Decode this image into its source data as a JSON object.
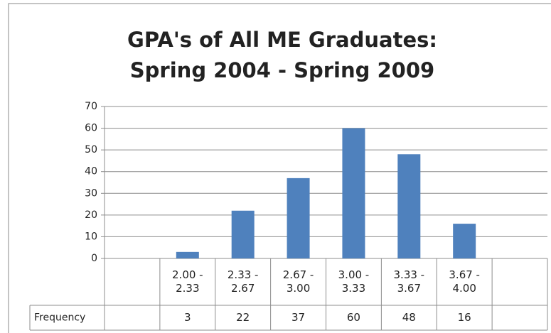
{
  "chart_data": {
    "type": "bar",
    "title": [
      "GPA's of All ME Graduates:",
      "Spring 2004 - Spring 2009"
    ],
    "categories": [
      null,
      "2.00 - 2.33",
      "2.33 - 2.67",
      "2.67 - 3.00",
      "3.00 - 3.33",
      "3.33 - 3.67",
      "3.67 - 4.00",
      null
    ],
    "series": [
      {
        "name": "Frequency",
        "color": "#4f81bd",
        "values": [
          null,
          3,
          22,
          37,
          60,
          48,
          16,
          null
        ]
      }
    ],
    "ylim": [
      0,
      70
    ],
    "yticks": [
      0,
      10,
      20,
      30,
      40,
      50,
      60,
      70
    ],
    "grid": true
  }
}
